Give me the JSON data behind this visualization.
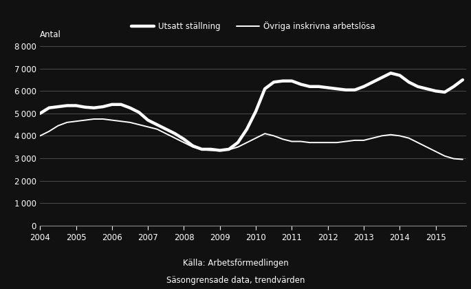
{
  "ylabel": "Antal",
  "xlabel_source": "Källa: Arbetsförmedlingen",
  "xlabel_source2": "Säsongrensade data, trendvärden",
  "legend_utsatt": "Utsatt ställning",
  "legend_ovriga": "Övriga inskrivna arbetslösa",
  "background_color": "#111111",
  "line_color": "#ffffff",
  "text_color": "#ffffff",
  "ylim": [
    0,
    8000
  ],
  "yticks": [
    0,
    1000,
    2000,
    3000,
    4000,
    5000,
    6000,
    7000,
    8000
  ],
  "xlim_start": 2004.0,
  "xlim_end": 2015.85,
  "utsatt_x": [
    2004.0,
    2004.25,
    2004.5,
    2004.75,
    2005.0,
    2005.25,
    2005.5,
    2005.75,
    2006.0,
    2006.25,
    2006.5,
    2006.75,
    2007.0,
    2007.25,
    2007.5,
    2007.75,
    2008.0,
    2008.25,
    2008.5,
    2008.75,
    2009.0,
    2009.25,
    2009.5,
    2009.75,
    2010.0,
    2010.25,
    2010.5,
    2010.75,
    2011.0,
    2011.25,
    2011.5,
    2011.75,
    2012.0,
    2012.25,
    2012.5,
    2012.75,
    2013.0,
    2013.25,
    2013.5,
    2013.75,
    2014.0,
    2014.25,
    2014.5,
    2014.75,
    2015.0,
    2015.25,
    2015.5,
    2015.75
  ],
  "utsatt_y": [
    5000,
    5250,
    5300,
    5350,
    5350,
    5280,
    5250,
    5300,
    5400,
    5400,
    5250,
    5050,
    4700,
    4500,
    4300,
    4100,
    3850,
    3550,
    3400,
    3400,
    3350,
    3400,
    3700,
    4300,
    5100,
    6100,
    6400,
    6450,
    6450,
    6300,
    6200,
    6200,
    6150,
    6100,
    6050,
    6050,
    6200,
    6400,
    6600,
    6800,
    6700,
    6400,
    6200,
    6100,
    6000,
    5950,
    6200,
    6500
  ],
  "ovriga_x": [
    2004.0,
    2004.25,
    2004.5,
    2004.75,
    2005.0,
    2005.25,
    2005.5,
    2005.75,
    2006.0,
    2006.25,
    2006.5,
    2006.75,
    2007.0,
    2007.25,
    2007.5,
    2007.75,
    2008.0,
    2008.25,
    2008.5,
    2008.75,
    2009.0,
    2009.25,
    2009.5,
    2009.75,
    2010.0,
    2010.25,
    2010.5,
    2010.75,
    2011.0,
    2011.25,
    2011.5,
    2011.75,
    2012.0,
    2012.25,
    2012.5,
    2012.75,
    2013.0,
    2013.25,
    2013.5,
    2013.75,
    2014.0,
    2014.25,
    2014.5,
    2014.75,
    2015.0,
    2015.25,
    2015.5,
    2015.75
  ],
  "ovriga_y": [
    4000,
    4200,
    4450,
    4600,
    4650,
    4700,
    4750,
    4750,
    4700,
    4650,
    4600,
    4500,
    4400,
    4300,
    4100,
    3900,
    3700,
    3500,
    3380,
    3350,
    3350,
    3380,
    3500,
    3700,
    3900,
    4100,
    4000,
    3850,
    3750,
    3750,
    3700,
    3700,
    3700,
    3700,
    3750,
    3800,
    3800,
    3900,
    4000,
    4050,
    4000,
    3900,
    3700,
    3500,
    3300,
    3100,
    2980,
    2950
  ]
}
